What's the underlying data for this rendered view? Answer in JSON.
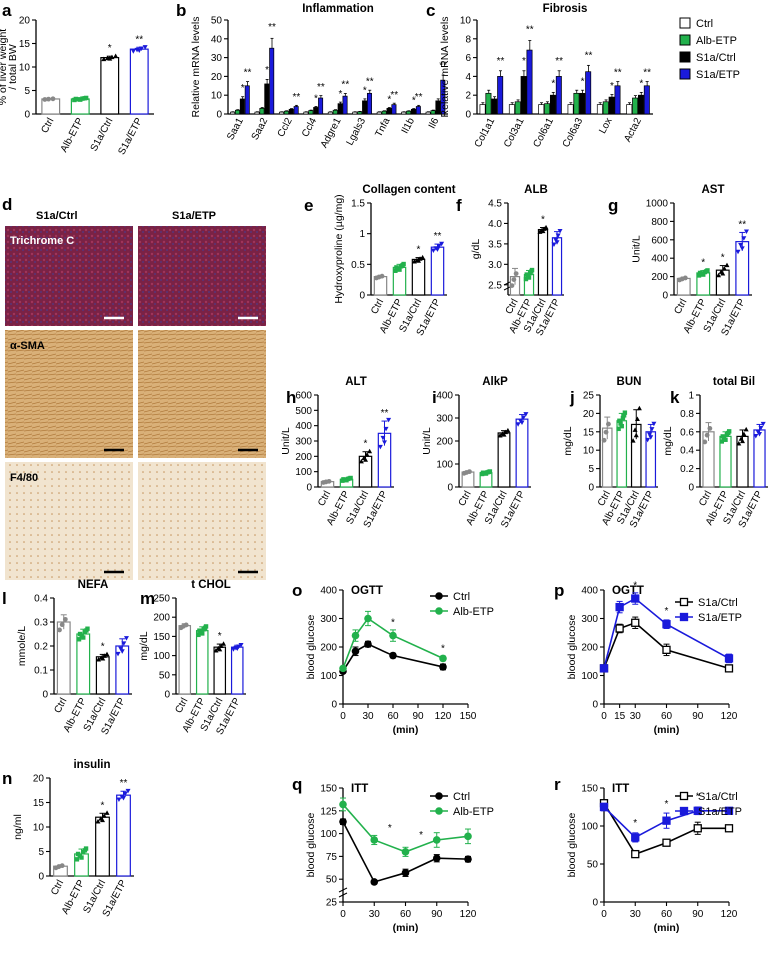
{
  "figure": {
    "legend_groups": [
      {
        "name": "Ctrl",
        "color": "#ffffff",
        "edge": "#000000"
      },
      {
        "name": "Alb-ETP",
        "color": "#22b14c",
        "edge": "#000000"
      },
      {
        "name": "S1a/Ctrl",
        "color": "#000000",
        "edge": "#000000"
      },
      {
        "name": "S1a/ETP",
        "color": "#1a1adb",
        "edge": "#000000"
      }
    ],
    "colors": {
      "ctrl": "#888888",
      "alb": "#22b14c",
      "s1a": "#000000",
      "s1aetp": "#1a1adb"
    }
  },
  "chart_data": [
    {
      "id": "a",
      "type": "bar",
      "title": "",
      "ylabel": "% of liver weight / total BW",
      "categories": [
        "Ctrl",
        "Alb-ETP",
        "S1a/Ctrl",
        "S1a/ETP"
      ],
      "values": [
        3.2,
        3.2,
        12,
        13.8
      ],
      "errors": [
        0.1,
        0.2,
        0.3,
        0.4
      ],
      "stars": [
        "",
        "",
        "*",
        "**"
      ],
      "ylim": [
        0,
        20
      ],
      "yticks": [
        0,
        5,
        10,
        15,
        20
      ]
    },
    {
      "id": "b",
      "type": "bar",
      "title": "Inflammation",
      "ylabel": "Relative mRNA levels",
      "categories": [
        "Saa1",
        "Saa2",
        "Ccl2",
        "Ccl4",
        "Adgre1",
        "Lgals3",
        "Tnfa",
        "Il1b",
        "Il6"
      ],
      "series": [
        {
          "name": "Ctrl",
          "values": [
            1,
            1,
            1,
            1,
            1,
            1,
            1,
            1,
            1
          ]
        },
        {
          "name": "Alb-ETP",
          "values": [
            2,
            3,
            1.5,
            1.8,
            2,
            1.2,
            1.5,
            1.5,
            1.8
          ]
        },
        {
          "name": "S1a/Ctrl",
          "values": [
            8,
            16,
            2.5,
            3.5,
            5.5,
            7,
            3,
            2.5,
            7
          ]
        },
        {
          "name": "S1a/ETP",
          "values": [
            15,
            35,
            4,
            8.5,
            9.5,
            11,
            5,
            4,
            18
          ]
        }
      ],
      "stars": [
        [
          "*",
          "**"
        ],
        [
          "*",
          "**"
        ],
        [
          "",
          "**"
        ],
        [
          "*",
          "**"
        ],
        [
          "*",
          "**"
        ],
        [
          "*",
          "**"
        ],
        [
          "*",
          "**"
        ],
        [
          "*",
          "**"
        ],
        [
          "",
          "**"
        ]
      ],
      "ylim": [
        0,
        50
      ],
      "yticks": [
        0,
        10,
        20,
        30,
        40,
        50
      ]
    },
    {
      "id": "c",
      "type": "bar",
      "title": "Fibrosis",
      "ylabel": "Relative mRNA levels",
      "categories": [
        "Col1a1",
        "Col3a1",
        "Col6a1",
        "Col6a3",
        "Lox",
        "Acta2"
      ],
      "series": [
        {
          "name": "Ctrl",
          "values": [
            1,
            1,
            1,
            1,
            1,
            1
          ]
        },
        {
          "name": "Alb-ETP",
          "values": [
            2.2,
            1.3,
            1.1,
            2.2,
            1.3,
            1.7
          ]
        },
        {
          "name": "S1a/Ctrl",
          "values": [
            1.6,
            4,
            2,
            2.2,
            1.8,
            2
          ]
        },
        {
          "name": "S1a/ETP",
          "values": [
            4,
            6.8,
            4,
            4.5,
            3,
            3
          ]
        }
      ],
      "stars": [
        [
          "",
          "**"
        ],
        [
          "*",
          "**"
        ],
        [
          "*",
          "**"
        ],
        [
          "*",
          "**"
        ],
        [
          "*",
          "**"
        ],
        [
          "*",
          "**"
        ]
      ],
      "ylim": [
        0,
        10
      ],
      "yticks": [
        0,
        2,
        4,
        6,
        8,
        10
      ]
    },
    {
      "id": "e",
      "type": "bar",
      "title": "Collagen content",
      "ylabel": "Hydroxyproline (µg/mg)",
      "categories": [
        "Ctrl",
        "Alb-ETP",
        "S1a/Ctrl",
        "S1a/ETP"
      ],
      "values": [
        0.3,
        0.45,
        0.58,
        0.78
      ],
      "errors": [
        0.02,
        0.05,
        0.03,
        0.05
      ],
      "stars": [
        "",
        "",
        "*",
        "**"
      ],
      "ylim": [
        0,
        1.5
      ],
      "yticks": [
        0,
        0.5,
        1.0,
        1.5
      ]
    },
    {
      "id": "f",
      "type": "bar",
      "title": "ALB",
      "ylabel": "g/dL",
      "categories": [
        "Ctrl",
        "Alb-ETP",
        "S1a/Ctrl",
        "S1a/ETP"
      ],
      "values": [
        2.7,
        2.75,
        3.85,
        3.65
      ],
      "errors": [
        0.2,
        0.1,
        0.05,
        0.15
      ],
      "stars": [
        "",
        "",
        "*",
        ""
      ],
      "ylim": [
        2.25,
        4.5
      ],
      "yticks": [
        2.5,
        3.0,
        3.5,
        4.0,
        4.5
      ],
      "yticklabels": [
        "2.5",
        "3.0",
        "3.5",
        "4.0",
        "4.5"
      ]
    },
    {
      "id": "g",
      "type": "bar",
      "title": "AST",
      "ylabel": "Unit/L",
      "categories": [
        "Ctrl",
        "Alb-ETP",
        "S1a/Ctrl",
        "S1a/ETP"
      ],
      "values": [
        180,
        240,
        270,
        580
      ],
      "errors": [
        15,
        25,
        50,
        100
      ],
      "stars": [
        "",
        "*",
        "*",
        "**"
      ],
      "ylim": [
        0,
        1000
      ],
      "yticks": [
        0,
        200,
        400,
        600,
        800,
        1000
      ]
    },
    {
      "id": "h",
      "type": "bar",
      "title": "ALT",
      "ylabel": "Unit/L",
      "categories": [
        "Ctrl",
        "Alb-ETP",
        "S1a/Ctrl",
        "S1a/ETP"
      ],
      "values": [
        35,
        50,
        200,
        350
      ],
      "errors": [
        5,
        8,
        30,
        80
      ],
      "stars": [
        "",
        "",
        "*",
        "**"
      ],
      "ylim": [
        0,
        600
      ],
      "yticks": [
        0,
        100,
        200,
        300,
        400,
        500,
        600
      ]
    },
    {
      "id": "i",
      "type": "bar",
      "title": "AlkP",
      "ylabel": "Unit/L",
      "categories": [
        "Ctrl",
        "Alb-ETP",
        "S1a/Ctrl",
        "S1a/ETP"
      ],
      "values": [
        65,
        62,
        235,
        295
      ],
      "errors": [
        5,
        5,
        10,
        20
      ],
      "stars": [
        "",
        "",
        "",
        ""
      ],
      "ylim": [
        0,
        400
      ],
      "yticks": [
        0,
        100,
        200,
        300,
        400
      ]
    },
    {
      "id": "j",
      "type": "bar",
      "title": "BUN",
      "ylabel": "mg/dL",
      "categories": [
        "Ctrl",
        "Alb-ETP",
        "S1a/Ctrl",
        "S1a/ETP"
      ],
      "values": [
        16,
        18,
        17,
        15
      ],
      "errors": [
        3,
        2,
        4,
        2
      ],
      "stars": [
        "",
        "",
        "",
        ""
      ],
      "ylim": [
        0,
        25
      ],
      "yticks": [
        0,
        5,
        10,
        15,
        20,
        25
      ]
    },
    {
      "id": "k",
      "type": "bar",
      "title": "total Bil",
      "ylabel": "mg/dL",
      "categories": [
        "Ctrl",
        "Alb-ETP",
        "S1a/Ctrl",
        "S1a/ETP"
      ],
      "values": [
        0.6,
        0.55,
        0.55,
        0.62
      ],
      "errors": [
        0.1,
        0.05,
        0.07,
        0.06
      ],
      "stars": [
        "",
        "",
        "",
        ""
      ],
      "ylim": [
        0,
        1.0
      ],
      "yticks": [
        0,
        0.2,
        0.4,
        0.6,
        0.8,
        1.0
      ]
    },
    {
      "id": "l",
      "type": "bar",
      "title": "NEFA",
      "ylabel": "mmole/L",
      "categories": [
        "Ctrl",
        "Alb-ETP",
        "S1a/Ctrl",
        "S1a/ETP"
      ],
      "values": [
        0.3,
        0.25,
        0.155,
        0.2
      ],
      "errors": [
        0.03,
        0.02,
        0.01,
        0.03
      ],
      "stars": [
        "",
        "",
        "*",
        ""
      ],
      "ylim": [
        0,
        0.4
      ],
      "yticks": [
        0,
        0.1,
        0.2,
        0.3,
        0.4
      ]
    },
    {
      "id": "m",
      "type": "bar",
      "title": "t CHOL",
      "ylabel": "mg/dL",
      "categories": [
        "Ctrl",
        "Alb-ETP",
        "S1a/Ctrl",
        "S1a/ETP"
      ],
      "values": [
        178,
        165,
        122,
        122
      ],
      "errors": [
        5,
        10,
        8,
        5
      ],
      "stars": [
        "",
        "",
        "*",
        ""
      ],
      "ylim": [
        0,
        250
      ],
      "yticks": [
        0,
        50,
        100,
        150,
        200,
        250
      ]
    },
    {
      "id": "n",
      "type": "bar",
      "title": "insulin",
      "ylabel": "ng/ml",
      "categories": [
        "Ctrl",
        "Alb-ETP",
        "S1a/Ctrl",
        "S1a/ETP"
      ],
      "values": [
        2,
        4.5,
        12,
        16.5
      ],
      "errors": [
        0.3,
        1.0,
        0.8,
        0.8
      ],
      "stars": [
        "",
        "",
        "*",
        "**"
      ],
      "ylim": [
        0,
        20
      ],
      "yticks": [
        0,
        5,
        10,
        15,
        20
      ]
    },
    {
      "id": "o",
      "type": "line",
      "title": "OGTT",
      "xlabel": "(min)",
      "ylabel": "blood glucose",
      "x": [
        0,
        15,
        30,
        60,
        120
      ],
      "series": [
        {
          "name": "Ctrl",
          "values": [
            115,
            185,
            210,
            170,
            130
          ],
          "errors": [
            5,
            15,
            10,
            8,
            10
          ]
        },
        {
          "name": "Alb-ETP",
          "values": [
            125,
            240,
            300,
            240,
            160
          ],
          "errors": [
            5,
            20,
            25,
            20,
            8
          ]
        }
      ],
      "stars": [
        {
          "x": 60,
          "y": 275,
          "t": "*"
        },
        {
          "x": 120,
          "y": 185,
          "t": "*"
        }
      ],
      "xlim": [
        0,
        150
      ],
      "xticks": [
        0,
        30,
        60,
        90,
        120,
        150
      ],
      "ylim": [
        0,
        400
      ],
      "yticks": [
        0,
        100,
        200,
        300,
        400
      ]
    },
    {
      "id": "p",
      "type": "line",
      "title": "OGTT",
      "xlabel": "(min)",
      "ylabel": "blood glucose",
      "x": [
        0,
        15,
        30,
        60,
        120
      ],
      "series": [
        {
          "name": "S1a/Ctrl",
          "values": [
            125,
            265,
            285,
            190,
            125
          ],
          "errors": [
            5,
            15,
            20,
            20,
            10
          ]
        },
        {
          "name": "S1a/ETP",
          "values": [
            125,
            340,
            370,
            280,
            160
          ],
          "errors": [
            5,
            20,
            20,
            15,
            15
          ]
        }
      ],
      "stars": [
        {
          "x": 15,
          "y": 385,
          "t": "*"
        },
        {
          "x": 30,
          "y": 405,
          "t": "*"
        },
        {
          "x": 60,
          "y": 315,
          "t": "*"
        }
      ],
      "xlim": [
        0,
        120
      ],
      "xticks": [
        0,
        15,
        30,
        60,
        90,
        120
      ],
      "ylim": [
        0,
        400
      ],
      "yticks": [
        0,
        100,
        200,
        300,
        400
      ]
    },
    {
      "id": "q",
      "type": "line",
      "title": "ITT",
      "xlabel": "(min)",
      "ylabel": "blood glucose",
      "x": [
        0,
        30,
        60,
        90,
        120
      ],
      "series": [
        {
          "name": "Ctrl",
          "values": [
            113,
            47,
            57,
            73,
            72
          ],
          "errors": [
            3,
            2,
            4,
            4,
            3
          ]
        },
        {
          "name": "Alb-ETP",
          "values": [
            132,
            93,
            80,
            93,
            97
          ],
          "errors": [
            7,
            5,
            5,
            8,
            8
          ]
        }
      ],
      "stars": [
        {
          "x": 45,
          "y": 103,
          "t": "*"
        },
        {
          "x": 75,
          "y": 95,
          "t": "*"
        }
      ],
      "xlim": [
        0,
        120
      ],
      "xticks": [
        0,
        30,
        60,
        90,
        120
      ],
      "ylim": [
        25,
        150
      ],
      "yticks": [
        25,
        50,
        75,
        100,
        125,
        150
      ]
    },
    {
      "id": "r",
      "type": "line",
      "title": "ITT",
      "xlabel": "(min)",
      "ylabel": "blood glucose",
      "x": [
        0,
        30,
        60,
        90,
        120
      ],
      "series": [
        {
          "name": "S1a/Ctrl",
          "values": [
            130,
            63,
            78,
            97,
            97
          ],
          "errors": [
            4,
            3,
            4,
            8,
            4
          ]
        },
        {
          "name": "S1a/ETP",
          "values": [
            125,
            85,
            107,
            120,
            120
          ],
          "errors": [
            5,
            6,
            10,
            5,
            3
          ]
        }
      ],
      "stars": [
        {
          "x": 30,
          "y": 100,
          "t": "*"
        },
        {
          "x": 60,
          "y": 125,
          "t": "*"
        },
        {
          "x": 90,
          "y": 135,
          "t": "*"
        }
      ],
      "xlim": [
        0,
        120
      ],
      "xticks": [
        0,
        30,
        60,
        90,
        120
      ],
      "ylim": [
        0,
        150
      ],
      "yticks": [
        0,
        50,
        100,
        150
      ]
    }
  ],
  "micrographs": {
    "columns": [
      "S1a/Ctrl",
      "S1a/ETP"
    ],
    "rows": [
      "Trichrome C",
      "α-SMA",
      "F4/80"
    ]
  },
  "panel_labels": [
    "a",
    "b",
    "c",
    "d",
    "e",
    "f",
    "g",
    "h",
    "i",
    "j",
    "k",
    "l",
    "m",
    "n",
    "o",
    "p",
    "q",
    "r"
  ]
}
